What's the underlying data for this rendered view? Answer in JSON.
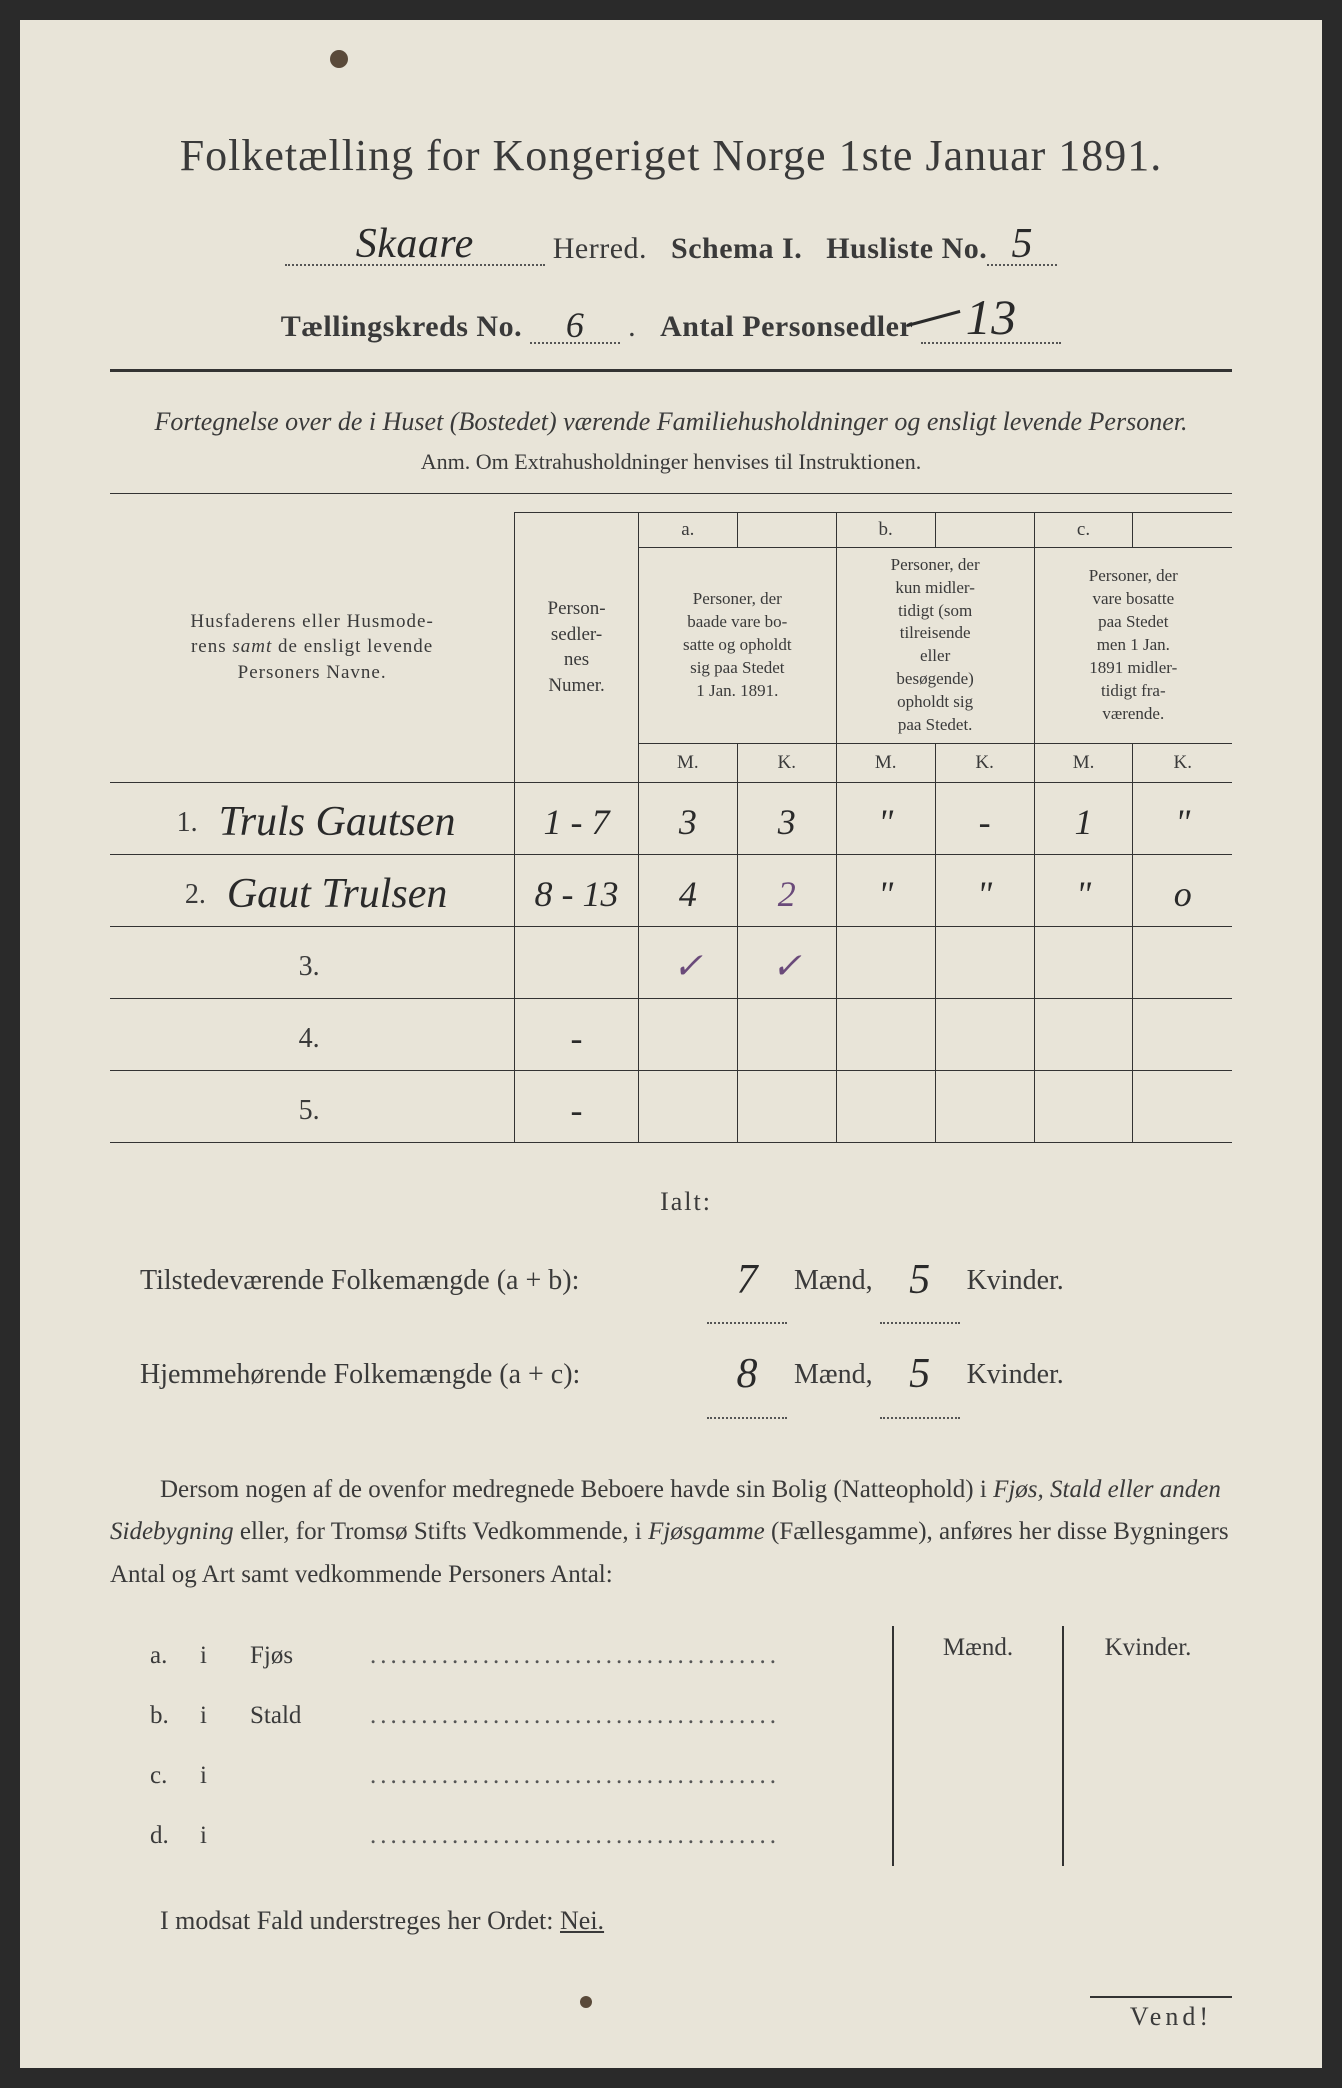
{
  "page": {
    "background_color": "#e8e4d8",
    "text_color": "#3a3a3a",
    "handwriting_color": "#2a2a2a",
    "purple_ink": "#6a4a7a"
  },
  "title": "Folketælling for Kongeriget Norge 1ste Januar 1891.",
  "header": {
    "herred_value": "Skaare",
    "herred_label": "Herred.",
    "schema_label": "Schema I.",
    "husliste_label": "Husliste No.",
    "husliste_value": "5",
    "kreds_label": "Tællingskreds No.",
    "kreds_value": "6",
    "antal_label": "Antal Personsedler",
    "antal_value": "13"
  },
  "subtitle": "Fortegnelse over de i Huset (Bostedet) værende Familiehusholdninger og ensligt levende Personer.",
  "anm": "Anm. Om Extrahusholdninger henvises til Instruktionen.",
  "table": {
    "head": {
      "names": "Husfaderens eller Husmoderens samt de ensligt levende Personers Navne.",
      "numer": "Personsedlernes Numer.",
      "a_label": "a.",
      "a_text": "Personer, der baade vare bosatte og opholdt sig paa Stedet 1 Jan. 1891.",
      "b_label": "b.",
      "b_text": "Personer, der kun midlertidigt (som tilreisende eller besøgende) opholdt sig paa Stedet.",
      "c_label": "c.",
      "c_text": "Personer, der vare bosatte paa Stedet men 1 Jan. 1891 midlertidigt fraværende.",
      "M": "M.",
      "K": "K."
    },
    "rows": [
      {
        "n": "1.",
        "name": "Truls Gautsen",
        "num": "1 - 7",
        "aM": "3",
        "aK": "3",
        "bM": "\"",
        "bK": "-",
        "cM": "1",
        "cK": "\""
      },
      {
        "n": "2.",
        "name": "Gaut Trulsen",
        "num": "8 - 13",
        "aM": "4",
        "aK": "2",
        "bM": "\"",
        "bK": "\"",
        "cM": "\"",
        "cK": "o"
      },
      {
        "n": "3.",
        "name": "",
        "num": "",
        "aM": "✓",
        "aK": "✓",
        "bM": "",
        "bK": "",
        "cM": "",
        "cK": ""
      },
      {
        "n": "4.",
        "name": "",
        "num": "-",
        "aM": "",
        "aK": "",
        "bM": "",
        "bK": "",
        "cM": "",
        "cK": ""
      },
      {
        "n": "5.",
        "name": "",
        "num": "-",
        "aM": "",
        "aK": "",
        "bM": "",
        "bK": "",
        "cM": "",
        "cK": ""
      }
    ]
  },
  "summary": {
    "ialt": "Ialt:",
    "line1_label": "Tilstedeværende Folkemængde (a + b):",
    "line1_m": "7",
    "line1_k": "5",
    "line2_label": "Hjemmehørende Folkemængde (a + c):",
    "line2_m": "8",
    "line2_k": "5",
    "maend": "Mænd,",
    "kvinder": "Kvinder."
  },
  "paragraph": "Dersom nogen af de ovenfor medregnede Beboere havde sin Bolig (Natteophold) i Fjøs, Stald eller anden Sidebygning eller, for Tromsø Stifts Vedkommende, i Fjøsgamme (Fællesgamme), anføres her disse Bygningers Antal og Art samt vedkommende Personers Antal:",
  "lower": {
    "header_m": "Mænd.",
    "header_k": "Kvinder.",
    "rows": [
      {
        "a": "a.",
        "i": "i",
        "label": "Fjøs"
      },
      {
        "a": "b.",
        "i": "i",
        "label": "Stald"
      },
      {
        "a": "c.",
        "i": "i",
        "label": ""
      },
      {
        "a": "d.",
        "i": "i",
        "label": ""
      }
    ]
  },
  "final": "I modsat Fald understreges her Ordet:",
  "nei": "Nei.",
  "vend": "Vend!"
}
